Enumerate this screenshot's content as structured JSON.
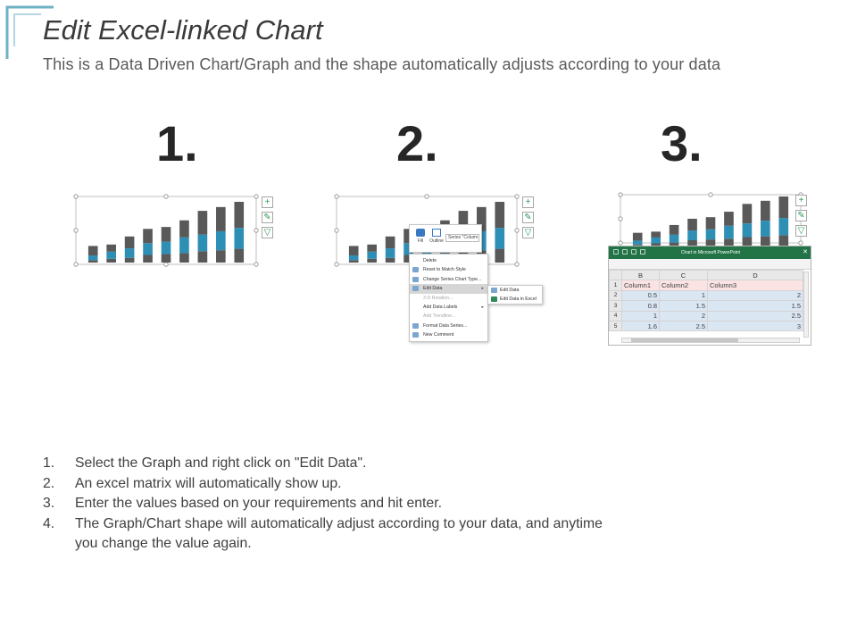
{
  "header": {
    "title": "Edit Excel-linked Chart",
    "subtitle": "This is a Data Driven Chart/Graph and the shape automatically adjusts according to your data"
  },
  "step_numbers": [
    "1.",
    "2.",
    "3."
  ],
  "colors": {
    "accent": "#6fb2c5",
    "bar_dark": "#595959",
    "bar_blue": "#2e8fb5",
    "excel_green": "#227447",
    "excel_data_fill": "#dbe6f3"
  },
  "chart_data": [
    {
      "type": "bar",
      "stacked": true,
      "categories": [
        "1",
        "2",
        "3",
        "4",
        "5",
        "6",
        "7",
        "8",
        "9"
      ],
      "series": [
        {
          "values": [
            0.5,
            0.8,
            1,
            1.6,
            1.8,
            2.0,
            2.4,
            2.6,
            2.9
          ]
        },
        {
          "values": [
            1,
            1.5,
            2,
            2.5,
            2.6,
            3.3,
            3.5,
            4.0,
            4.4
          ]
        },
        {
          "values": [
            2,
            1.5,
            2.5,
            3,
            3.1,
            3.6,
            5.0,
            5.1,
            5.5
          ]
        }
      ]
    }
  ],
  "side_icons": [
    {
      "icon": "plus-icon",
      "glyph": "+"
    },
    {
      "icon": "brush-icon",
      "glyph": "✎"
    },
    {
      "icon": "filter-icon",
      "glyph": "▽"
    }
  ],
  "context_menu": {
    "mini_toolbar": {
      "fill": "Fill",
      "outline": "Outline",
      "series_select": "Series \"Columr"
    },
    "items": [
      {
        "label": "Delete",
        "dim": false
      },
      {
        "label": "Reset to Match Style",
        "dim": false
      },
      {
        "label": "Change Series Chart Type...",
        "dim": false
      },
      {
        "label": "Edit Data",
        "dim": false,
        "highlighted": true,
        "submenu": true
      },
      {
        "label": "3-D Rotation...",
        "dim": true
      },
      {
        "label": "Add Data Labels",
        "dim": false,
        "submenu": true
      },
      {
        "label": "Add Trendline...",
        "dim": true
      },
      {
        "label": "Format Data Series...",
        "dim": false
      },
      {
        "label": "New Comment",
        "dim": false
      }
    ],
    "submenu": [
      "Edit Data",
      "Edit Data in Excel"
    ]
  },
  "excel": {
    "window_title": "Chart in Microsoft PowerPoint",
    "close": "✕",
    "columns": [
      "B",
      "C",
      "D"
    ],
    "rows": [
      {
        "n": "1",
        "cells": [
          "Column1",
          "Column2",
          "Column3"
        ]
      },
      {
        "n": "2",
        "cells": [
          "0.5",
          "1",
          "2"
        ]
      },
      {
        "n": "3",
        "cells": [
          "0.8",
          "1.5",
          "1.5"
        ]
      },
      {
        "n": "4",
        "cells": [
          "1",
          "2",
          "2.5"
        ]
      },
      {
        "n": "5",
        "cells": [
          "1.6",
          "2.5",
          "3"
        ]
      }
    ]
  },
  "instructions": [
    {
      "n": "1.",
      "text": "Select the Graph and right click on \"Edit Data\"."
    },
    {
      "n": "2.",
      "text": "An excel matrix will automatically show up."
    },
    {
      "n": "3.",
      "text": "Enter the values based on your requirements and hit enter."
    },
    {
      "n": "4.",
      "text": "The Graph/Chart shape will automatically adjust according to your data, and anytime you change the value again."
    }
  ]
}
